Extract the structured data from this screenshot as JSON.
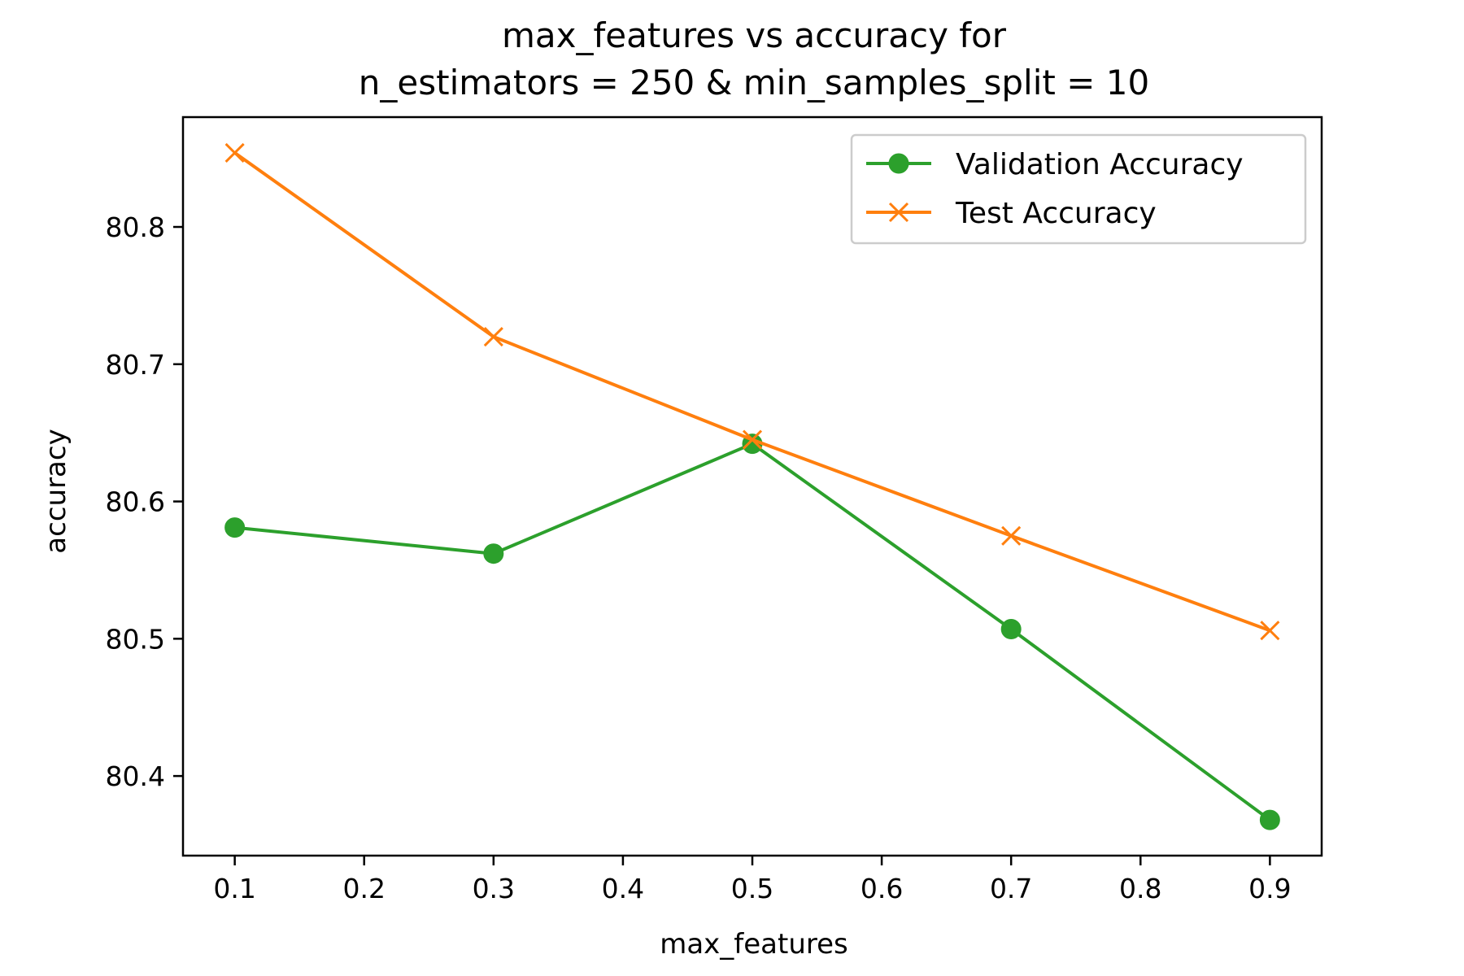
{
  "chart_data": {
    "type": "line",
    "title_lines": [
      "max_features vs accuracy for",
      "n_estimators = 250 & min_samples_split = 10"
    ],
    "xlabel": "max_features",
    "ylabel": "accuracy",
    "x_ticks": [
      "0.1",
      "0.2",
      "0.3",
      "0.4",
      "0.5",
      "0.6",
      "0.7",
      "0.8",
      "0.9"
    ],
    "y_ticks": [
      "80.4",
      "80.5",
      "80.6",
      "80.7",
      "80.8"
    ],
    "xlim": [
      0.06,
      0.94
    ],
    "ylim": [
      80.342,
      80.88
    ],
    "grid": false,
    "legend_position": "upper right",
    "x": [
      0.1,
      0.3,
      0.5,
      0.7,
      0.9
    ],
    "series": [
      {
        "name": "Validation Accuracy",
        "color": "#2ca02c",
        "marker": "circle",
        "values": [
          80.581,
          80.562,
          80.642,
          80.507,
          80.368
        ]
      },
      {
        "name": "Test Accuracy",
        "color": "#ff7f0e",
        "marker": "x",
        "values": [
          80.854,
          80.72,
          80.645,
          80.575,
          80.506
        ]
      }
    ]
  }
}
